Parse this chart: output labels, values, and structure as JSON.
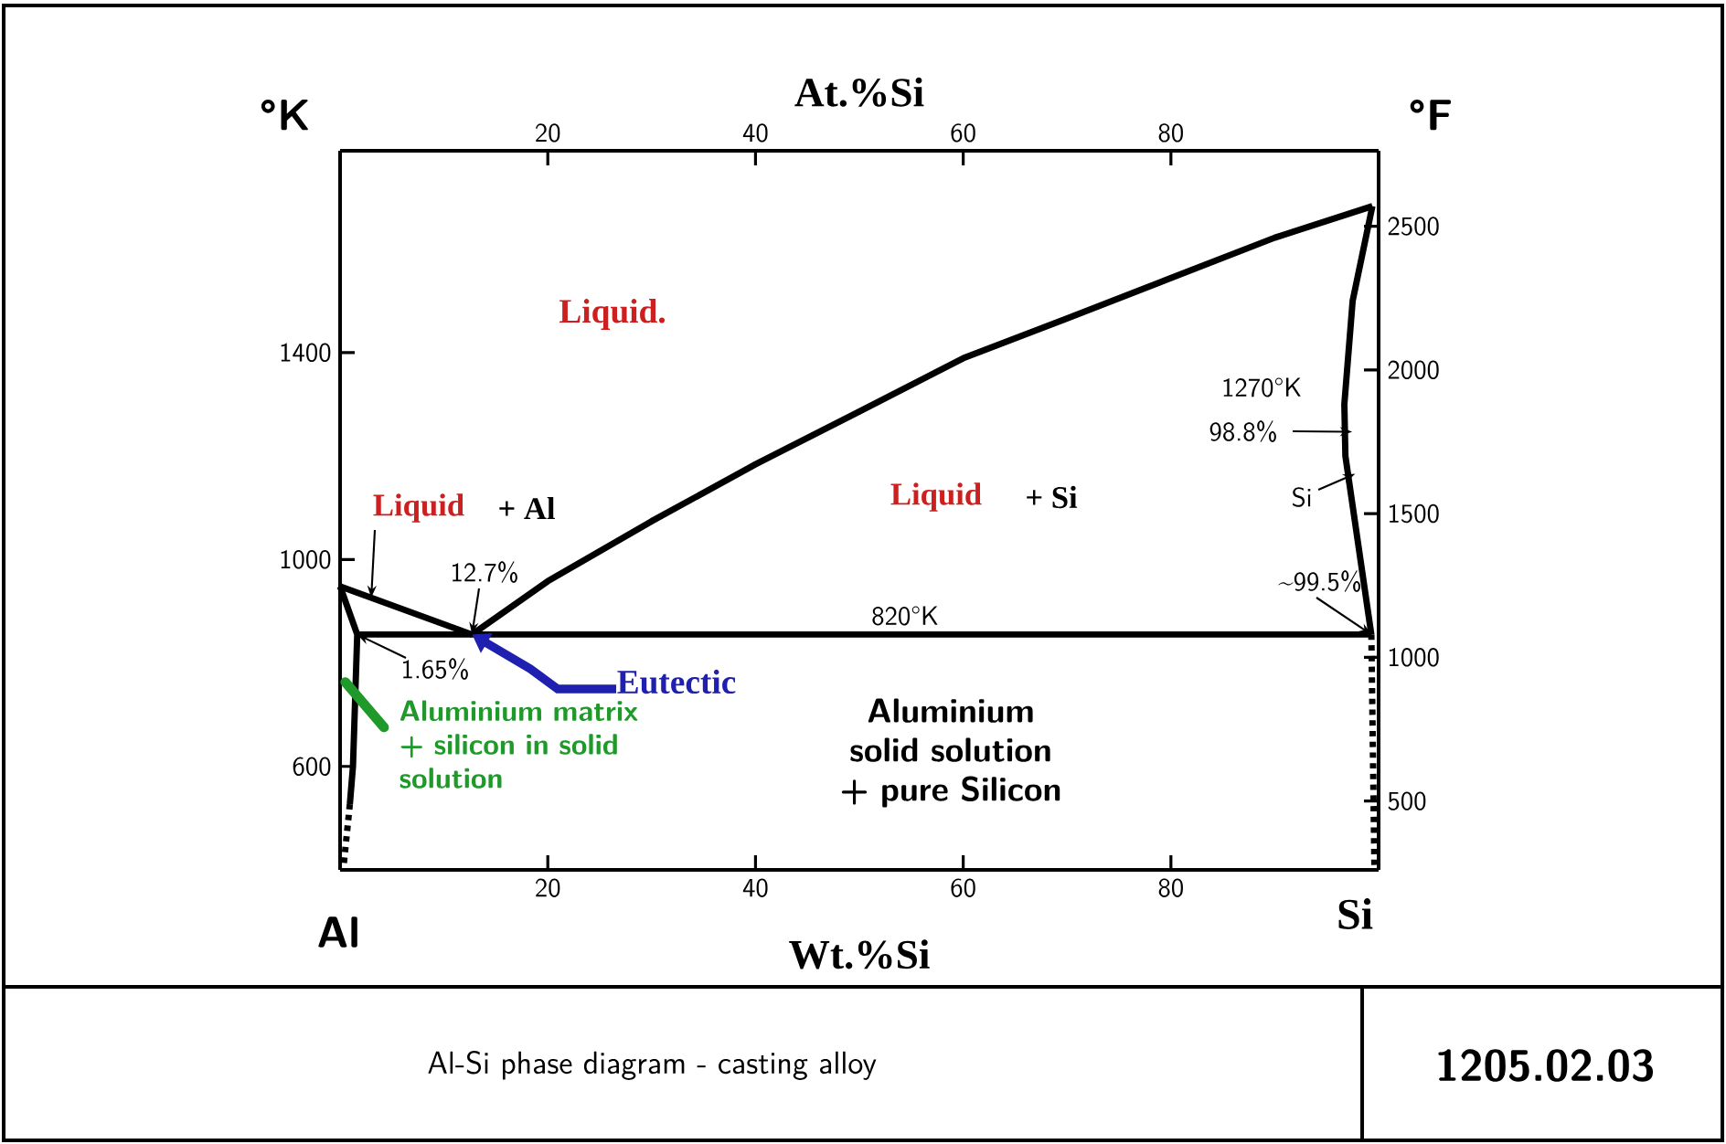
{
  "chart_data": {
    "type": "line",
    "title": "Al-Si phase diagram -  casting alloy",
    "xlabel": "Wt.%Si",
    "x2label": "At.%Si",
    "ylabel": "°K",
    "y2label": "°F",
    "xlim": [
      0,
      100
    ],
    "xticks": [
      20,
      40,
      60,
      80
    ],
    "x2lim": [
      0,
      100
    ],
    "x2ticks": [
      20,
      40,
      60,
      80
    ],
    "ylim": [
      400,
      1790
    ],
    "yticks": [
      600,
      1000,
      1400
    ],
    "y2lim": [
      260.33,
      2762.33
    ],
    "y2ticks": [
      500,
      1000,
      1500,
      2000,
      2500
    ],
    "series": [
      {
        "color": "#000000",
        "line_style": "solid",
        "x": [
          0,
          12.7
        ],
        "values": [
          948,
          855
        ]
      },
      {
        "color": "#000000",
        "line_style": "solid",
        "x": [
          12.7,
          20,
          30,
          40,
          50,
          60,
          70,
          80,
          90,
          99.4
        ],
        "values": [
          855,
          958,
          1074,
          1184,
          1286,
          1389,
          1466,
          1544,
          1622,
          1683
        ]
      },
      {
        "color": "#000000",
        "line_style": "solid",
        "x": [
          1.65,
          99.3
        ],
        "values": [
          855,
          855
        ]
      },
      {
        "color": "#000000",
        "line_style": "solid",
        "x": [
          0,
          1.65,
          1.24,
          0.94
        ],
        "values": [
          948,
          855,
          600,
          527
        ]
      },
      {
        "color": "#000000",
        "line_style": "dotted",
        "x": [
          0.94,
          0.35
        ],
        "values": [
          527,
          410
        ]
      },
      {
        "color": "#000000",
        "line_style": "solid",
        "x": [
          99.4,
          97.5,
          96.7,
          96.8,
          99.3
        ],
        "values": [
          1683,
          1500,
          1300,
          1200,
          855
        ]
      },
      {
        "color": "#000000",
        "line_style": "dotted",
        "x": [
          99.3,
          99.6
        ],
        "values": [
          855,
          400
        ]
      }
    ],
    "annotations": [
      "Liquid.",
      {
        "text": "Liquid",
        "x": 3,
        "y": 926
      },
      "+ Al",
      {
        "text": "12.7%",
        "x": 12.7,
        "y": 855
      },
      {
        "text": "1.65%",
        "x": 1.65,
        "y": 855
      },
      {
        "text": "Eutectic",
        "x": 12.7,
        "y": 855
      },
      "820°K",
      {
        "text": "Aluminium matrix + silicon in solid solution",
        "x": 0.5,
        "y": 763
      },
      "Aluminium solid solution + pure Silicon",
      "Liquid",
      "+ Si",
      "1270°K",
      {
        "text": "98.8%",
        "x": 96.75,
        "y": 1247
      },
      {
        "text": "Si",
        "x": 97.1,
        "y": 1160
      },
      {
        "text": "~99.5%",
        "x": 99.3,
        "y": 855
      },
      "Al",
      "Si",
      "1205.02.03"
    ]
  }
}
